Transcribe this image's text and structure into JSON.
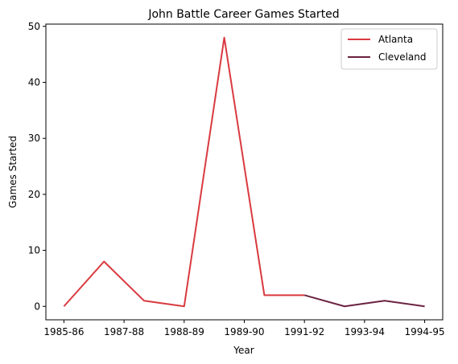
{
  "chart_data": {
    "type": "line",
    "title": "John Battle  Career Games Started",
    "xlabel": "Year",
    "ylabel": "Games Started",
    "x_tick_labels": [
      "1985-86",
      "1987-88",
      "1988-89",
      "1989-90",
      "1991-92",
      "1993-94",
      "1994-95"
    ],
    "y_ticks": [
      0,
      10,
      20,
      30,
      40,
      50
    ],
    "ylim": [
      -2.4,
      50.4
    ],
    "xlim": [
      -0.45,
      9.45
    ],
    "grid": false,
    "legend_position": "top-right",
    "series": [
      {
        "name": "Atlanta",
        "color": "#d93a3f",
        "points": [
          [
            0,
            0
          ],
          [
            1,
            8
          ],
          [
            2,
            1
          ],
          [
            3,
            0
          ],
          [
            4,
            48
          ],
          [
            5,
            2
          ],
          [
            6,
            2
          ]
        ]
      },
      {
        "name": "Cleveland",
        "color": "#6b2240",
        "points": [
          [
            6,
            2
          ],
          [
            7,
            0
          ],
          [
            8,
            1
          ],
          [
            9,
            0
          ]
        ]
      }
    ]
  }
}
